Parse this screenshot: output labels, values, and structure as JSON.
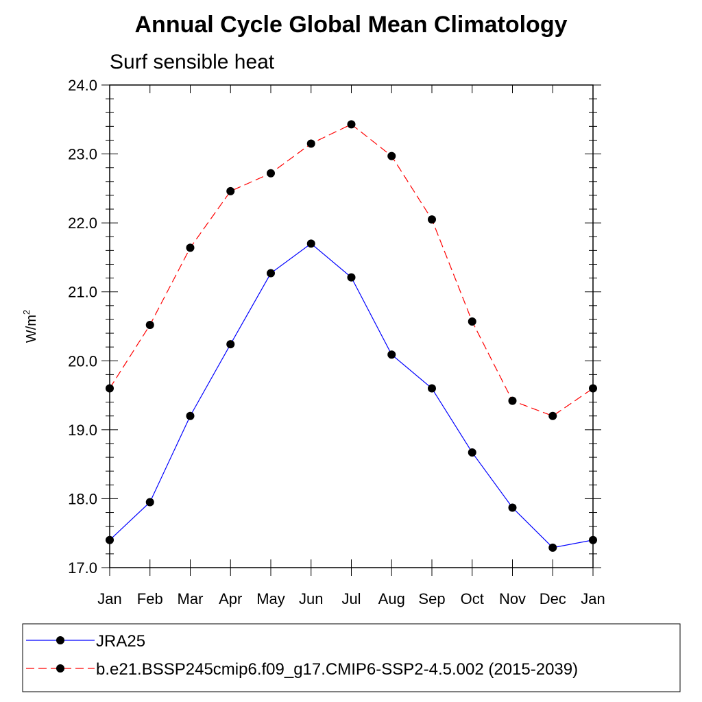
{
  "chart_data": {
    "type": "line",
    "title": "Annual Cycle Global Mean Climatology",
    "subtitle": "Surf sensible heat",
    "ylabel": "W/m",
    "ylabel_superscript": "2",
    "xlabel": "",
    "ylim": [
      17.0,
      24.0
    ],
    "yticks": [
      "17.0",
      "18.0",
      "19.0",
      "20.0",
      "21.0",
      "22.0",
      "23.0",
      "24.0"
    ],
    "categories": [
      "Jan",
      "Feb",
      "Mar",
      "Apr",
      "May",
      "Jun",
      "Jul",
      "Aug",
      "Sep",
      "Oct",
      "Nov",
      "Dec",
      "Jan"
    ],
    "series": [
      {
        "name": "JRA25",
        "color": "#0000ff",
        "dash": "solid",
        "values": [
          17.4,
          17.95,
          19.2,
          20.24,
          21.27,
          21.7,
          21.21,
          20.09,
          19.6,
          18.67,
          17.87,
          17.29,
          17.4
        ]
      },
      {
        "name": "b.e21.BSSP245cmip6.f09_g17.CMIP6-SSP2-4.5.002 (2015-2039)",
        "color": "#ff0000",
        "dash": "dashed",
        "values": [
          19.6,
          20.52,
          21.64,
          22.46,
          22.72,
          23.15,
          23.43,
          22.97,
          22.05,
          20.57,
          19.42,
          19.2,
          19.6
        ]
      }
    ],
    "marker_color": "#000000",
    "grid": false,
    "legend_position": "bottom"
  }
}
